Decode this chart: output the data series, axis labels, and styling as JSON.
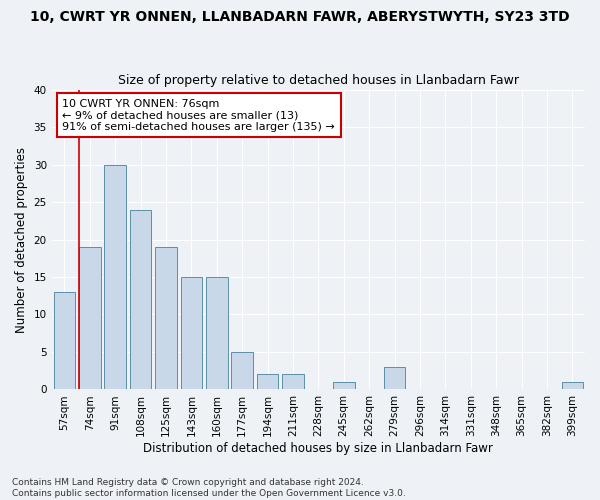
{
  "title": "10, CWRT YR ONNEN, LLANBADARN FAWR, ABERYSTWYTH, SY23 3TD",
  "subtitle": "Size of property relative to detached houses in Llanbadarn Fawr",
  "xlabel": "Distribution of detached houses by size in Llanbadarn Fawr",
  "ylabel": "Number of detached properties",
  "categories": [
    "57sqm",
    "74sqm",
    "91sqm",
    "108sqm",
    "125sqm",
    "143sqm",
    "160sqm",
    "177sqm",
    "194sqm",
    "211sqm",
    "228sqm",
    "245sqm",
    "262sqm",
    "279sqm",
    "296sqm",
    "314sqm",
    "331sqm",
    "348sqm",
    "365sqm",
    "382sqm",
    "399sqm"
  ],
  "values": [
    13,
    19,
    30,
    24,
    19,
    15,
    15,
    5,
    2,
    2,
    0,
    1,
    0,
    3,
    0,
    0,
    0,
    0,
    0,
    0,
    1
  ],
  "bar_color": "#c8d8e8",
  "bar_edge_color": "#5b8fa8",
  "highlight_line_color": "#cc0000",
  "annotation_text": "10 CWRT YR ONNEN: 76sqm\n← 9% of detached houses are smaller (13)\n91% of semi-detached houses are larger (135) →",
  "annotation_box_color": "#ffffff",
  "annotation_box_edge": "#cc0000",
  "ylim": [
    0,
    40
  ],
  "yticks": [
    0,
    5,
    10,
    15,
    20,
    25,
    30,
    35,
    40
  ],
  "background_color": "#eef2f7",
  "grid_color": "#ffffff",
  "footer": "Contains HM Land Registry data © Crown copyright and database right 2024.\nContains public sector information licensed under the Open Government Licence v3.0.",
  "title_fontsize": 10,
  "subtitle_fontsize": 9,
  "xlabel_fontsize": 8.5,
  "ylabel_fontsize": 8.5,
  "tick_fontsize": 7.5,
  "annotation_fontsize": 8,
  "footer_fontsize": 6.5
}
